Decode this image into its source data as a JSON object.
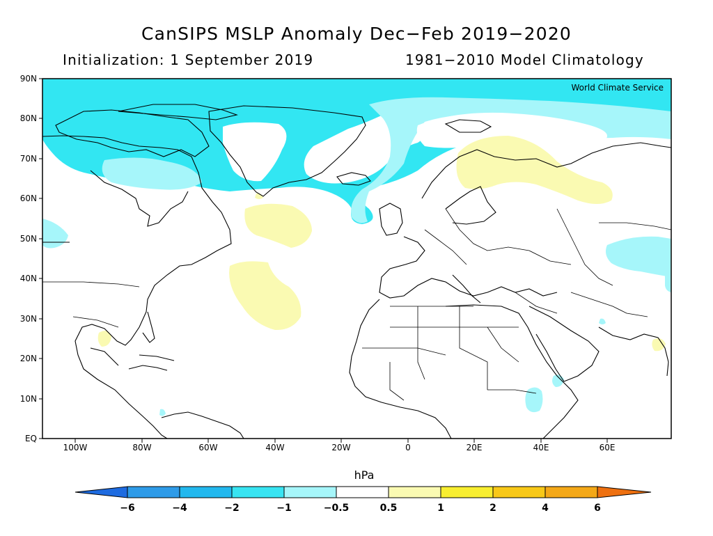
{
  "header": {
    "title": "CanSIPS MSLP Anomaly Dec−Feb 2019−2020",
    "init_text": "Initialization: 1 September 2019",
    "climatology_text": "1981−2010 Model Climatology"
  },
  "map": {
    "watermark": "World Climate Service",
    "lat_labels": [
      "90N",
      "80N",
      "70N",
      "60N",
      "50N",
      "40N",
      "30N",
      "20N",
      "10N",
      "EQ"
    ],
    "lon_labels": [
      "100W",
      "80W",
      "60W",
      "40W",
      "20W",
      "0",
      "20E",
      "40E",
      "60E"
    ]
  },
  "legend": {
    "unit": "hPa",
    "tick_labels": [
      "−6",
      "−4",
      "−2",
      "−1",
      "−0.5",
      "0.5",
      "1",
      "2",
      "4",
      "6"
    ],
    "colors": [
      "#1e6be0",
      "#2e9be8",
      "#22b8ee",
      "#38e4f2",
      "#a6f6fa",
      "#ffffff",
      "#fafab2",
      "#f8ee30",
      "#f8c818",
      "#f4a818",
      "#f49020",
      "#ee7010"
    ]
  }
}
